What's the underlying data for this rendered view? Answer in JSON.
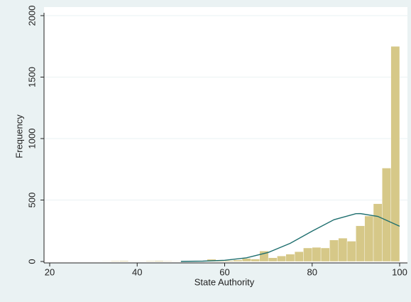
{
  "chart_data": {
    "type": "histogram",
    "xlabel": "State Authority",
    "ylabel": "Frequency",
    "bins": [
      30,
      32,
      34,
      36,
      38,
      40,
      42,
      44,
      46,
      48,
      50,
      52,
      54,
      56,
      58,
      60,
      62,
      64,
      66,
      68,
      70,
      72,
      74,
      76,
      78,
      80,
      82,
      84,
      86,
      88,
      90,
      92,
      94,
      96,
      98,
      100
    ],
    "counts": [
      2,
      3,
      5,
      6,
      3,
      3,
      5,
      6,
      4,
      3,
      4,
      5,
      6,
      18,
      6,
      8,
      12,
      25,
      20,
      85,
      30,
      45,
      60,
      80,
      110,
      115,
      110,
      175,
      190,
      165,
      290,
      370,
      470,
      760,
      1750
    ],
    "color": "#d6c888",
    "density_curve": {
      "color": "#1f6f6f",
      "x": [
        50,
        55,
        60,
        65,
        70,
        75,
        80,
        85,
        90,
        91,
        95,
        100
      ],
      "y": [
        0.7,
        2.9,
        10,
        30,
        74,
        148,
        247,
        340,
        389,
        390,
        367,
        287
      ]
    },
    "xlim": [
      20,
      100
    ],
    "ylim": [
      0,
      2000
    ],
    "xticks": [
      20,
      40,
      60,
      80,
      100
    ],
    "yticks": [
      0,
      500,
      1000,
      1500,
      2000
    ],
    "grid": true
  }
}
